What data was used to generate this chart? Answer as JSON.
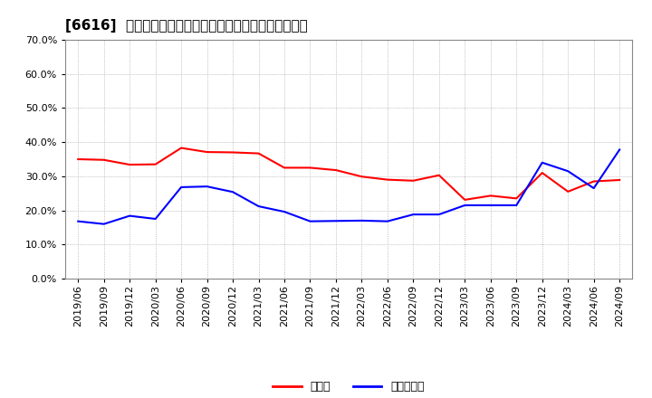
{
  "title": "[6616]  現預金、有利子負債の総資産に対する比率の推移",
  "legend_cash": "現預金",
  "legend_debt": "有利子負債",
  "cash_color": "#ff0000",
  "debt_color": "#0000ff",
  "ylim": [
    0.0,
    0.7
  ],
  "yticks": [
    0.0,
    0.1,
    0.2,
    0.3,
    0.4,
    0.5,
    0.6,
    0.7
  ],
  "background_color": "#ffffff",
  "plot_bg_color": "#ffffff",
  "dates": [
    "2019/06",
    "2019/09",
    "2019/12",
    "2020/03",
    "2020/06",
    "2020/09",
    "2020/12",
    "2021/03",
    "2021/06",
    "2021/09",
    "2021/12",
    "2022/03",
    "2022/06",
    "2022/09",
    "2022/12",
    "2023/03",
    "2023/06",
    "2023/09",
    "2023/12",
    "2024/03",
    "2024/06",
    "2024/09"
  ],
  "cash": [
    0.35,
    0.348,
    0.334,
    0.335,
    0.383,
    0.371,
    0.37,
    0.367,
    0.325,
    0.325,
    0.318,
    0.299,
    0.29,
    0.287,
    0.303,
    0.231,
    0.243,
    0.235,
    0.31,
    0.255,
    0.285,
    0.289
  ],
  "debt": [
    0.168,
    0.16,
    0.184,
    0.175,
    0.268,
    0.27,
    0.254,
    0.212,
    0.196,
    0.168,
    0.169,
    0.17,
    0.168,
    0.188,
    0.188,
    0.215,
    0.215,
    0.215,
    0.34,
    0.315,
    0.265,
    0.378
  ],
  "title_fontsize": 11,
  "tick_fontsize": 8,
  "legend_fontsize": 9,
  "linewidth": 1.5
}
